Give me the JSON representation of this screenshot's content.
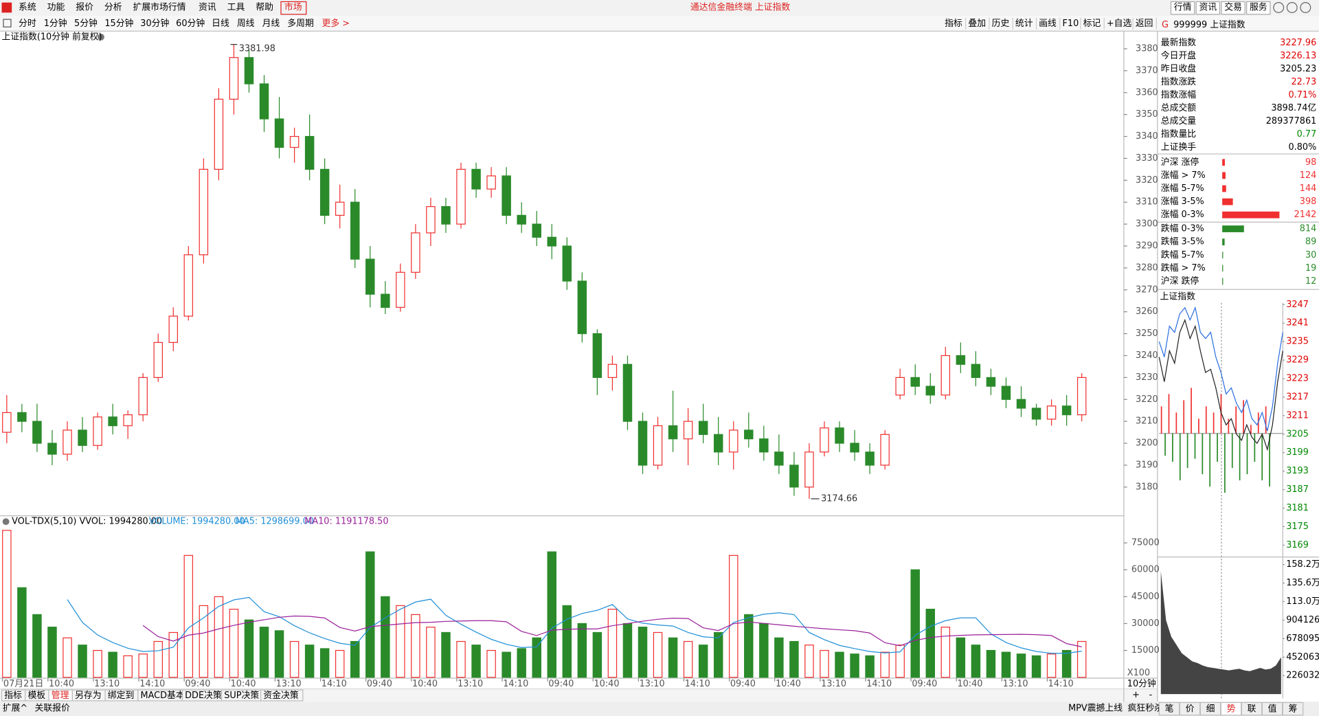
{
  "window_title": "通达信金融终端 上证指数",
  "menu": {
    "items": [
      "系统",
      "功能",
      "报价",
      "分析",
      "扩展市场行情",
      "资讯",
      "工具",
      "帮助"
    ],
    "market": "市场"
  },
  "top_buttons": [
    "行情",
    "资讯",
    "交易",
    "服务"
  ],
  "toolbar": {
    "periods": [
      "分时",
      "1分钟",
      "5分钟",
      "15分钟",
      "30分钟",
      "60分钟",
      "日线",
      "周线",
      "月线",
      "多周期"
    ],
    "more": "更多 >",
    "tools": [
      "指标",
      "叠加",
      "历史",
      "统计",
      "画线",
      "F10",
      "标记",
      "+自选",
      "返回"
    ]
  },
  "price_chart": {
    "type": "candlestick",
    "title": "上证指数(10分钟 前复权)",
    "ylim": [
      3167.3,
      3386.9
    ],
    "yticks": [
      3180,
      3190,
      3200,
      3210,
      3220,
      3230,
      3240,
      3250,
      3260,
      3270,
      3280,
      3290,
      3300,
      3310,
      3320,
      3330,
      3340,
      3350,
      3360,
      3370,
      3380
    ],
    "up_color": "#f03030",
    "down_color": "#2a8a2a",
    "high_label": 3381.98,
    "low_label": 3174.66,
    "ohlc": [
      [
        3205,
        3222,
        3200,
        3214
      ],
      [
        3214,
        3218,
        3205,
        3210
      ],
      [
        3210,
        3218,
        3196,
        3200
      ],
      [
        3200,
        3206,
        3190,
        3195
      ],
      [
        3195,
        3210,
        3192,
        3206
      ],
      [
        3206,
        3212,
        3196,
        3199
      ],
      [
        3199,
        3214,
        3197,
        3212
      ],
      [
        3212,
        3218,
        3204,
        3208
      ],
      [
        3208,
        3215,
        3202,
        3213
      ],
      [
        3213,
        3232,
        3210,
        3230
      ],
      [
        3230,
        3250,
        3228,
        3246
      ],
      [
        3246,
        3262,
        3242,
        3258
      ],
      [
        3258,
        3290,
        3256,
        3286
      ],
      [
        3286,
        3330,
        3282,
        3325
      ],
      [
        3325,
        3362,
        3320,
        3357
      ],
      [
        3357,
        3381.98,
        3350,
        3376
      ],
      [
        3376,
        3380,
        3360,
        3364
      ],
      [
        3364,
        3368,
        3342,
        3348
      ],
      [
        3348,
        3358,
        3330,
        3335
      ],
      [
        3335,
        3344,
        3328,
        3340
      ],
      [
        3340,
        3350,
        3320,
        3325
      ],
      [
        3325,
        3330,
        3300,
        3304
      ],
      [
        3304,
        3318,
        3298,
        3310
      ],
      [
        3310,
        3316,
        3280,
        3284
      ],
      [
        3284,
        3290,
        3262,
        3268
      ],
      [
        3268,
        3274,
        3259,
        3262
      ],
      [
        3262,
        3282,
        3260,
        3278
      ],
      [
        3278,
        3300,
        3275,
        3296
      ],
      [
        3296,
        3312,
        3290,
        3308
      ],
      [
        3308,
        3312,
        3296,
        3300
      ],
      [
        3300,
        3328,
        3298,
        3325
      ],
      [
        3325,
        3328,
        3312,
        3316
      ],
      [
        3316,
        3326,
        3312,
        3322
      ],
      [
        3322,
        3326,
        3300,
        3304
      ],
      [
        3304,
        3310,
        3296,
        3300
      ],
      [
        3300,
        3306,
        3290,
        3294
      ],
      [
        3294,
        3300,
        3284,
        3290
      ],
      [
        3290,
        3294,
        3270,
        3274
      ],
      [
        3274,
        3278,
        3246,
        3250
      ],
      [
        3250,
        3252,
        3222,
        3230
      ],
      [
        3230,
        3240,
        3224,
        3236
      ],
      [
        3236,
        3240,
        3206,
        3210
      ],
      [
        3210,
        3214,
        3186,
        3190
      ],
      [
        3190,
        3212,
        3188,
        3208
      ],
      [
        3208,
        3224,
        3196,
        3202
      ],
      [
        3202,
        3216,
        3190,
        3210
      ],
      [
        3210,
        3218,
        3200,
        3204
      ],
      [
        3204,
        3212,
        3190,
        3196
      ],
      [
        3196,
        3210,
        3188,
        3206
      ],
      [
        3206,
        3214,
        3198,
        3202
      ],
      [
        3202,
        3208,
        3192,
        3196
      ],
      [
        3196,
        3204,
        3186,
        3190
      ],
      [
        3190,
        3196,
        3176,
        3180
      ],
      [
        3180,
        3200,
        3174.66,
        3196
      ],
      [
        3196,
        3210,
        3194,
        3207
      ],
      [
        3207,
        3210,
        3196,
        3200
      ],
      [
        3200,
        3206,
        3192,
        3196
      ],
      [
        3196,
        3200,
        3186,
        3190
      ],
      [
        3190,
        3206,
        3188,
        3204
      ],
      [
        3222,
        3234,
        3220,
        3230
      ],
      [
        3230,
        3236,
        3222,
        3226
      ],
      [
        3226,
        3232,
        3218,
        3222
      ],
      [
        3222,
        3244,
        3220,
        3240
      ],
      [
        3240,
        3246,
        3232,
        3236
      ],
      [
        3236,
        3242,
        3226,
        3230
      ],
      [
        3230,
        3234,
        3222,
        3226
      ],
      [
        3226,
        3230,
        3216,
        3220
      ],
      [
        3220,
        3226,
        3212,
        3216
      ],
      [
        3216,
        3218,
        3208,
        3211
      ],
      [
        3211,
        3220,
        3208,
        3217
      ],
      [
        3217,
        3222,
        3208,
        3213
      ],
      [
        3213,
        3232,
        3210,
        3230
      ]
    ]
  },
  "volume_chart": {
    "type": "bar",
    "legend": [
      "VOL-TDX(5,10) VVOL: 1994280.00",
      "VOLUME: 1994280.00",
      "MA5: 1298699.00",
      "MA10: 1191178.50"
    ],
    "legend_colors": [
      "#000000",
      "#1f8fd8",
      "#1f8fd8",
      "#9a1f9a"
    ],
    "ylim": [
      0,
      83100
    ],
    "yticks": [
      15000,
      30000,
      45000,
      60000,
      75000
    ],
    "unit_label": "X100",
    "period_label": "10分钟",
    "categories": [
      "07月21日",
      null,
      null,
      "10:40",
      null,
      null,
      "13:10",
      null,
      null,
      "14:10",
      null,
      null,
      "09:40",
      null,
      null,
      "10:40",
      null,
      null,
      "13:10",
      null,
      null,
      "14:10",
      null,
      null,
      "09:40",
      null,
      null,
      "10:40",
      null,
      null,
      "13:10",
      null,
      null,
      "14:10",
      null,
      null,
      "09:40",
      null,
      null,
      "10:40",
      null,
      null,
      "13:10",
      null,
      null,
      "14:10",
      null,
      null,
      "09:40",
      null,
      null,
      "10:40",
      null,
      null,
      "13:10",
      null,
      null,
      "14:10",
      null,
      null,
      "09:40",
      null,
      null,
      "10:40",
      null,
      null,
      "13:10",
      null,
      null,
      "14:10",
      null,
      null
    ],
    "values": [
      82000,
      50000,
      35000,
      28000,
      22000,
      18000,
      15000,
      14000,
      12000,
      13000,
      20000,
      25000,
      68000,
      40000,
      45000,
      38000,
      32000,
      28000,
      26000,
      20000,
      18000,
      16000,
      15000,
      20000,
      70000,
      45000,
      40000,
      35000,
      28000,
      25000,
      20000,
      18000,
      15000,
      14000,
      16000,
      22000,
      70000,
      40000,
      30000,
      25000,
      38000,
      30000,
      28000,
      25000,
      22000,
      20000,
      18000,
      25000,
      68000,
      35000,
      30000,
      22000,
      20000,
      18000,
      15000,
      14000,
      13000,
      12000,
      14000,
      18000,
      60000,
      38000,
      28000,
      22000,
      18000,
      15000,
      14000,
      13000,
      12000,
      13000,
      15000,
      20000
    ],
    "series": [
      {
        "color": "#1f8fd8",
        "values": [
          null,
          null,
          null,
          null,
          43400,
          30600,
          23600,
          19400,
          16200,
          14400,
          14800,
          16800,
          27600,
          33200,
          39600,
          43200,
          44600,
          36600,
          33800,
          28800,
          24800,
          21600,
          19000,
          17800,
          27800,
          33200,
          38000,
          42000,
          43600,
          34600,
          29600,
          25200,
          21200,
          18400,
          16600,
          17000,
          27400,
          32400,
          35600,
          37400,
          40600,
          32600,
          30200,
          29200,
          28600,
          25000,
          22600,
          22000,
          30600,
          33200,
          35200,
          36000,
          35000,
          25000,
          21000,
          17800,
          16000,
          14400,
          13600,
          14200,
          23400,
          28400,
          31600,
          33200,
          33200,
          24200,
          19400,
          16400,
          14400,
          13400,
          13400,
          14600
        ]
      },
      {
        "color": "#9a1f9a",
        "values": [
          null,
          null,
          null,
          null,
          null,
          null,
          null,
          null,
          null,
          28900,
          22700,
          20200,
          23500,
          24700,
          27000,
          29000,
          30700,
          32100,
          33500,
          34200,
          34000,
          33100,
          27800,
          25800,
          28300,
          29000,
          29800,
          30500,
          30700,
          31200,
          31400,
          31600,
          31600,
          31000,
          25600,
          23300,
          26300,
          26800,
          27000,
          27000,
          28800,
          30000,
          31300,
          32400,
          33000,
          32800,
          27600,
          26100,
          29900,
          30900,
          30100,
          29300,
          28500,
          27800,
          27100,
          26500,
          26000,
          24700,
          19300,
          17600,
          20600,
          22200,
          23000,
          23400,
          23700,
          23800,
          23900,
          24000,
          23800,
          23300,
          18800,
          17000
        ]
      }
    ]
  },
  "side_panel": {
    "code": "G",
    "title": "999999 上证指数",
    "quotes": [
      {
        "label": "最新指数",
        "value": "3227.96",
        "color": "#e00000"
      },
      {
        "label": "今日开盘",
        "value": "3226.13",
        "color": "#e00000"
      },
      {
        "label": "昨日收盘",
        "value": "3205.23",
        "color": "#000000"
      },
      {
        "label": "指数涨跌",
        "value": "22.73",
        "color": "#e00000"
      },
      {
        "label": "指数涨幅",
        "value": "0.71%",
        "color": "#e00000"
      },
      {
        "label": "总成交额",
        "value": "3898.74亿",
        "color": "#000000"
      },
      {
        "label": "总成交量",
        "value": "289377861",
        "color": "#000000"
      },
      {
        "label": "指数量比",
        "value": "0.77",
        "color": "#008800"
      },
      {
        "label": "上证换手",
        "value": "0.80%",
        "color": "#000000"
      }
    ],
    "breadth_up": [
      {
        "label": "沪深 涨停",
        "value": 98
      },
      {
        "label": "涨幅 > 7%",
        "value": 124
      },
      {
        "label": "涨幅 5-7%",
        "value": 144
      },
      {
        "label": "涨幅 3-5%",
        "value": 398
      },
      {
        "label": "涨幅 0-3%",
        "value": 2142
      }
    ],
    "breadth_down": [
      {
        "label": "跌幅 0-3%",
        "value": 814
      },
      {
        "label": "跌幅 3-5%",
        "value": 89
      },
      {
        "label": "跌幅 5-7%",
        "value": 30
      },
      {
        "label": "跌幅 > 7%",
        "value": 19
      },
      {
        "label": "沪深 跌停",
        "value": 12
      }
    ],
    "mini_chart": {
      "type": "line",
      "title": "上证指数",
      "ylim": [
        3165.7,
        3251.1
      ],
      "yticks": [
        3169,
        3175,
        3181,
        3187,
        3193,
        3199,
        3205,
        3211,
        3217,
        3223,
        3229,
        3235,
        3241,
        3247
      ],
      "series": [
        {
          "color": "#2a6fe0",
          "values": [
            3235,
            3230,
            3240,
            3238,
            3244,
            3246,
            3242,
            3246,
            3238,
            3236,
            3238,
            3230,
            3225,
            3218,
            3220,
            3215,
            3212,
            3216,
            3210,
            3208,
            3212,
            3206,
            3214,
            3228,
            3238
          ]
        },
        {
          "color": "#222222",
          "values": [
            3230,
            3222,
            3232,
            3228,
            3238,
            3242,
            3236,
            3240,
            3232,
            3225,
            3226,
            3220,
            3212,
            3208,
            3210,
            3205,
            3203,
            3208,
            3204,
            3202,
            3205,
            3200,
            3208,
            3222,
            3232
          ]
        }
      ],
      "bars": [
        3214,
        3198,
        3218,
        3196,
        3212,
        3190,
        3216,
        3194,
        3220,
        3197,
        3210,
        3192,
        3214,
        3188,
        3212,
        3196,
        3218,
        3186,
        3210,
        3194,
        3214,
        3190,
        3216,
        3192,
        3208,
        3196,
        3212,
        3190,
        3214,
        3188
      ],
      "vlim": [
        0,
        1643600
      ],
      "vticks": [
        {
          "value": 226032,
          "label": "226032"
        },
        {
          "value": 452063,
          "label": "452063"
        },
        {
          "value": 678095,
          "label": "678095"
        },
        {
          "value": 904126,
          "label": "904126"
        },
        {
          "value": 1130000,
          "label": "113.0万"
        },
        {
          "value": 1356000,
          "label": "135.6万"
        },
        {
          "value": 1582000,
          "label": "158.2万"
        }
      ],
      "volume": [
        1500000,
        900000,
        700000,
        600000,
        500000,
        450000,
        400000,
        380000,
        350000,
        330000,
        320000,
        310000,
        300000,
        290000,
        300000,
        310000,
        290000,
        280000,
        300000,
        320000,
        300000,
        310000,
        350000,
        450000
      ]
    }
  },
  "bottom_tabs": [
    "指标",
    "模板",
    "管理",
    "另存为",
    "绑定到",
    "MACD基本",
    "DDE决策",
    "SUP决策",
    "资金决策"
  ],
  "active_tab": 2,
  "status": {
    "left": [
      "扩展^",
      "关联报价"
    ],
    "promo": [
      "MPV震撼上线",
      "疯狂秒杀"
    ],
    "tabs": [
      "笔",
      "价",
      "细",
      "势",
      "联",
      "值",
      "筹"
    ],
    "active_tab": 3
  }
}
